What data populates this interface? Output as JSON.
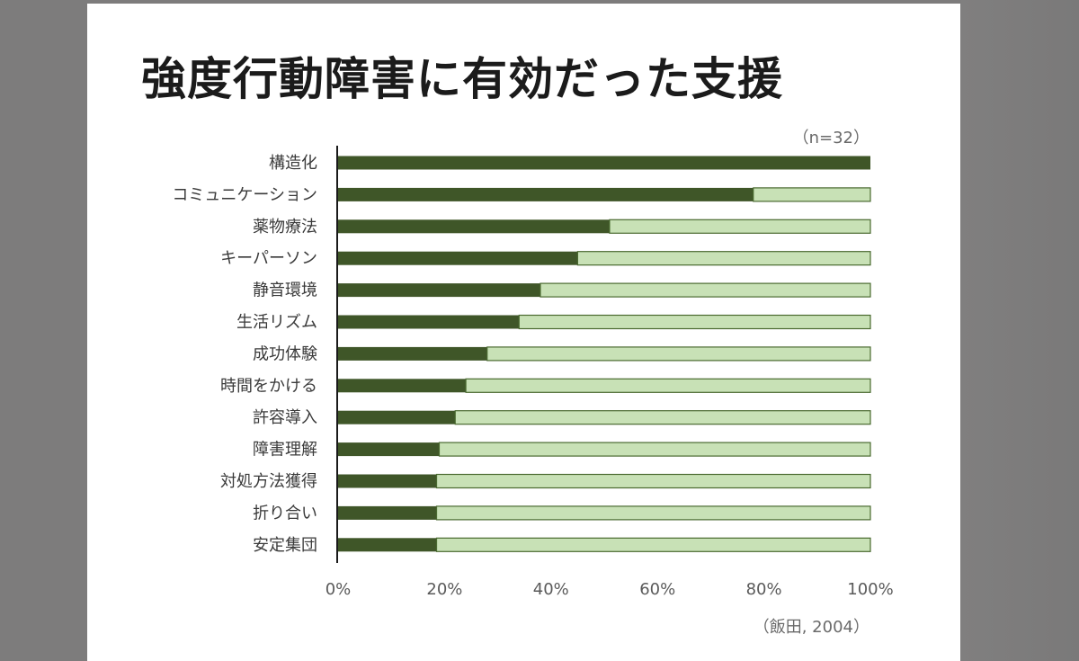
{
  "slide": {
    "title": "強度行動障害に有効だった支援",
    "sample_note": "（n=32）",
    "source_note": "（飯田, 2004）"
  },
  "colors": {
    "primary": "#3f5628",
    "remainder": "#c8e1b6",
    "remainder_border": "#4a6a30"
  },
  "chart_data": {
    "type": "bar",
    "orientation": "horizontal",
    "stacked": true,
    "percent_axis": true,
    "categories": [
      "構造化",
      "コミュニケーション",
      "薬物療法",
      "キーパーソン",
      "静音環境",
      "生活リズム",
      "成功体験",
      "時間をかける",
      "許容導入",
      "障害理解",
      "対処方法獲得",
      "折り合い",
      "安定集団"
    ],
    "series": [
      {
        "values": [
          100,
          78,
          51,
          45,
          38,
          34,
          28,
          24,
          22,
          19,
          18.5,
          18.5,
          18.5
        ]
      },
      {
        "values": [
          0,
          22,
          49,
          55,
          62,
          66,
          72,
          76,
          78,
          81,
          81.5,
          81.5,
          81.5
        ]
      }
    ],
    "xlim": [
      0,
      100
    ],
    "xticks": [
      "0%",
      "20%",
      "40%",
      "60%",
      "80%",
      "100%"
    ],
    "grid": false,
    "legend": "none"
  }
}
